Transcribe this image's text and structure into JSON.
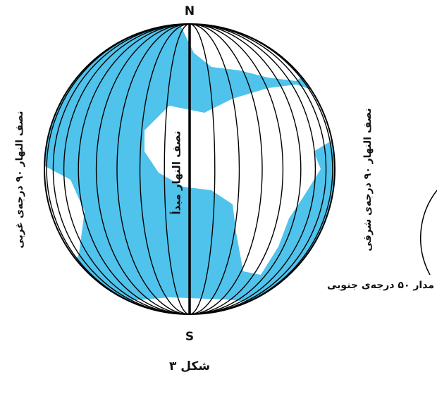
{
  "labels": {
    "north": "N",
    "south": "S",
    "prime_meridian": "نصف النهار مبدأ",
    "west_meridian": "نصف النهار ۹۰ درجه‌ی غربی",
    "east_meridian": "نصف النهار ۹۰ درجه‌ی شرقی",
    "parallel": "مدار ۵۰ درجه‌ی جنوبی"
  },
  "caption": "شکل ۳"
}
